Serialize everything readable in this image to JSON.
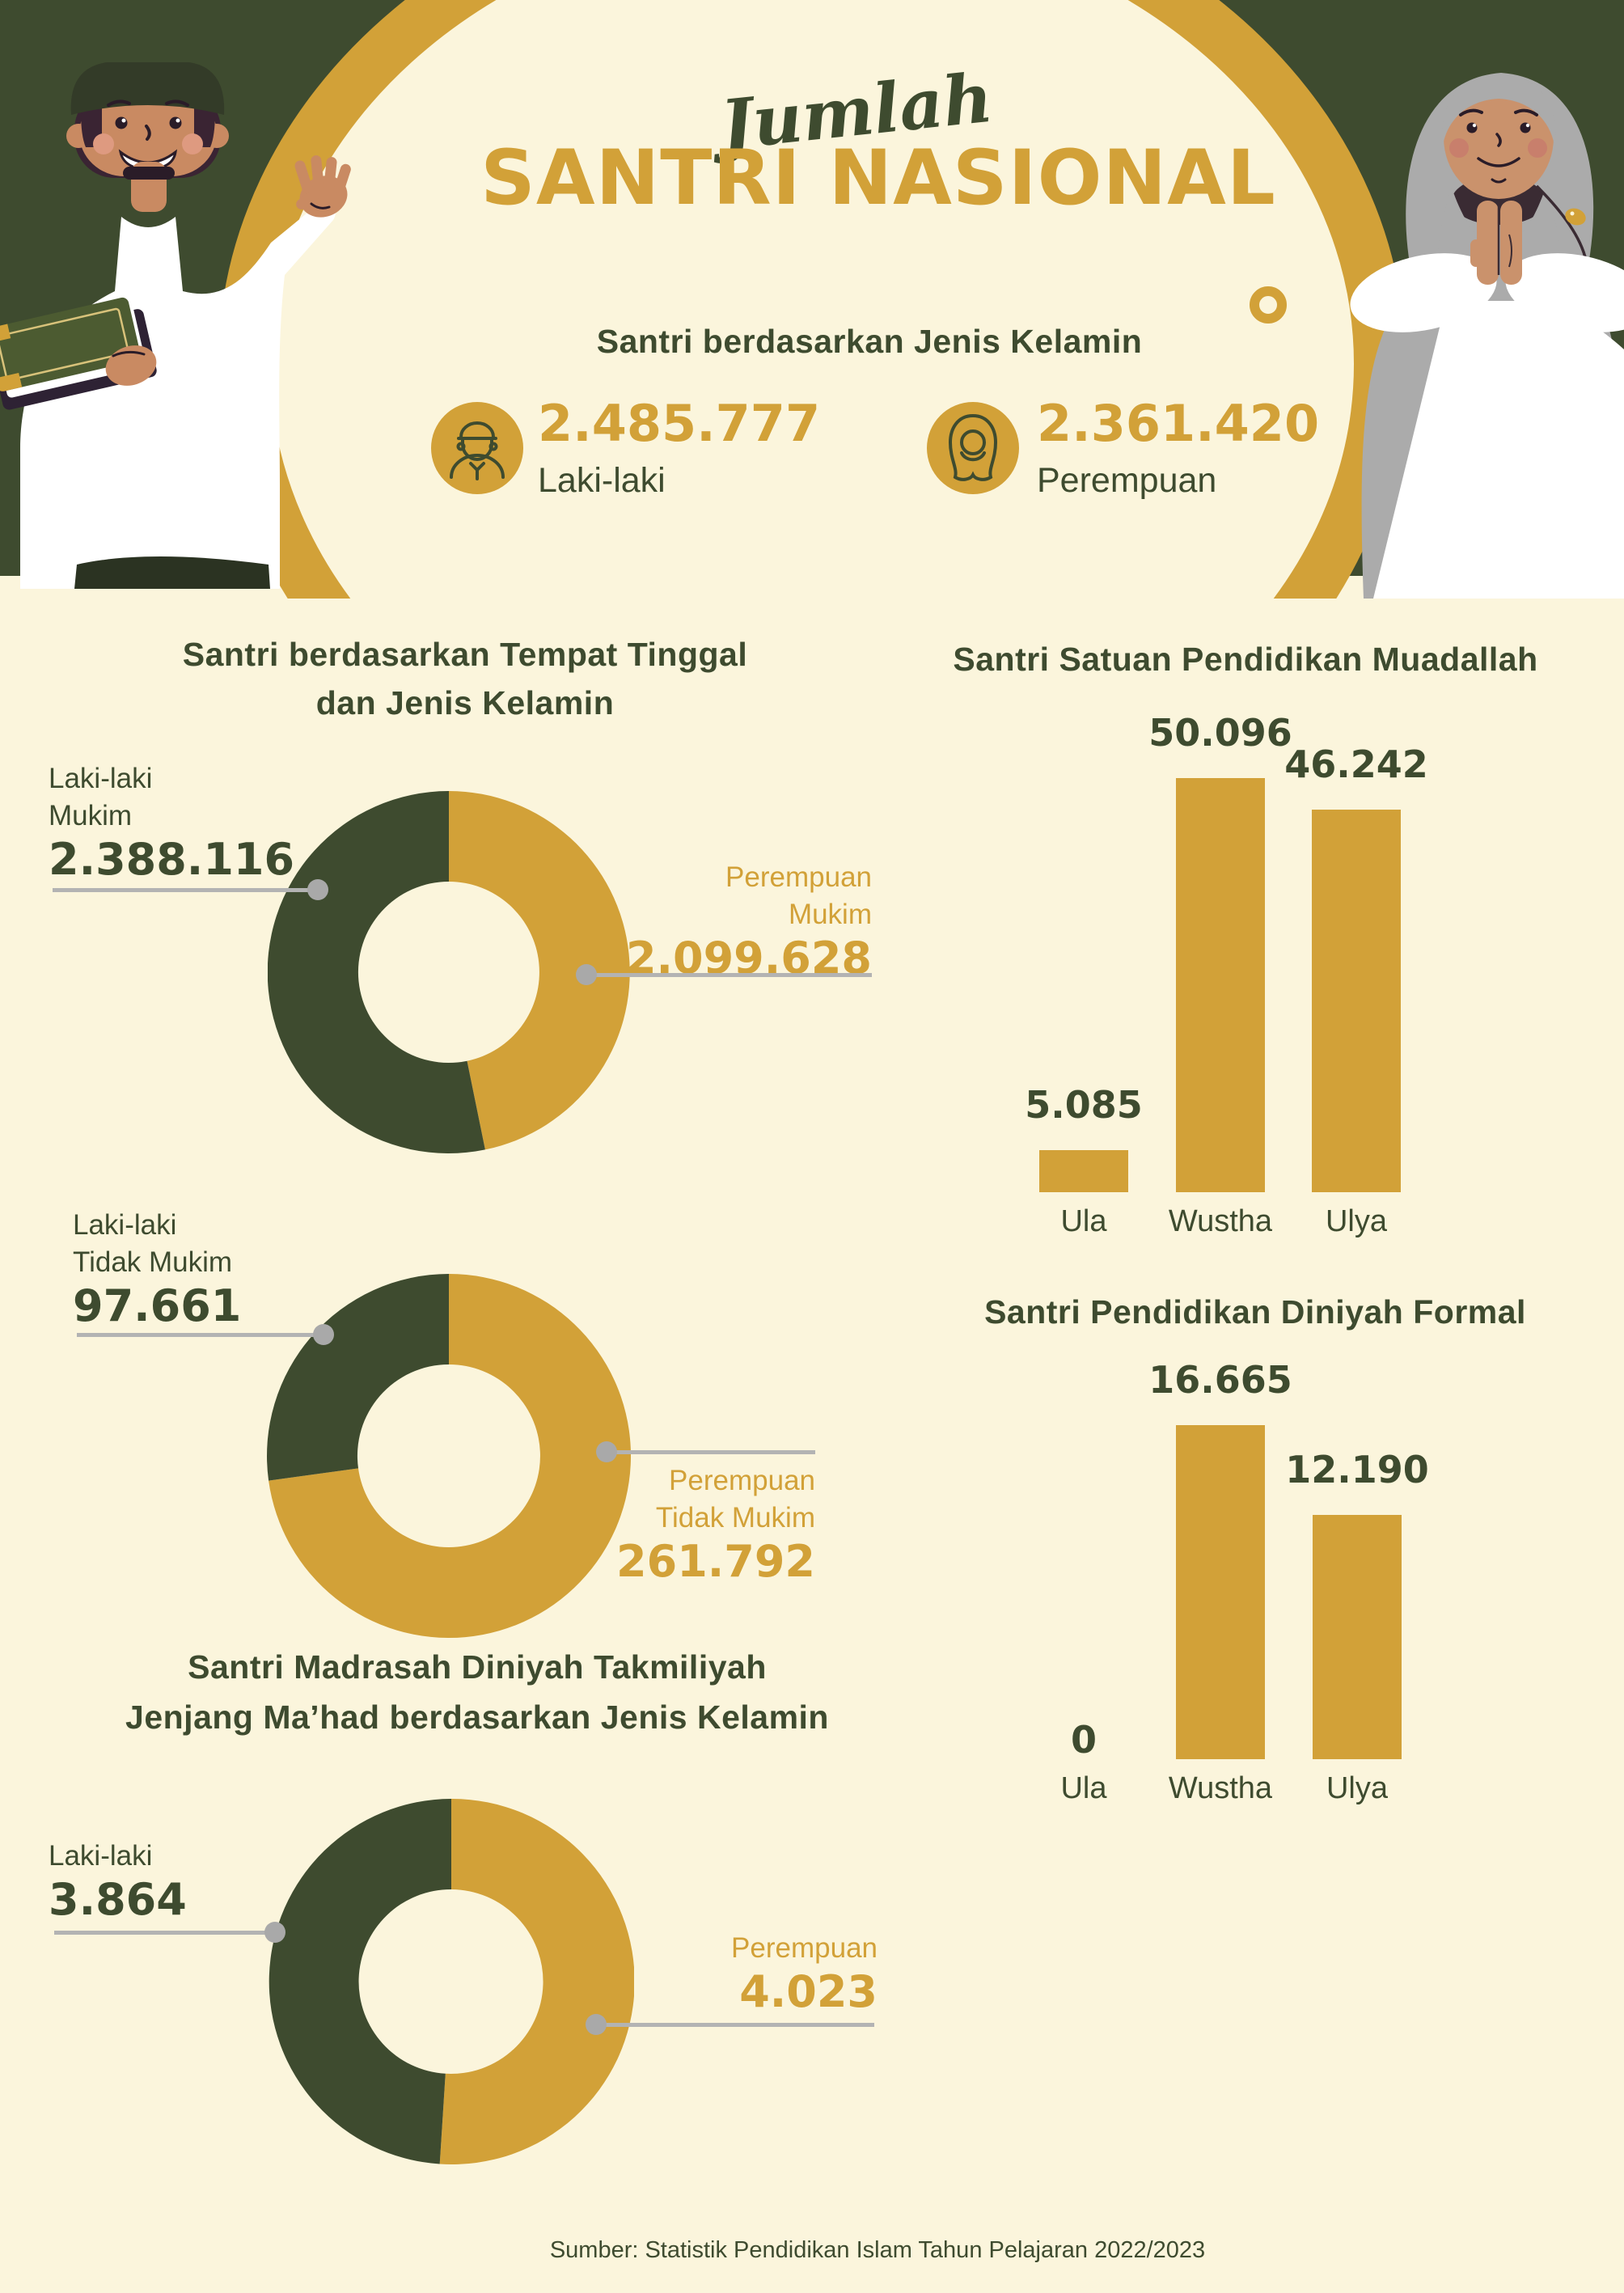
{
  "title": {
    "script": "Jumlah",
    "main": "SANTRI NASIONAL"
  },
  "colors": {
    "green": "#3E4B2F",
    "gold": "#D2A138",
    "cream": "#FBF5DC",
    "grey": "#A9A9A9"
  },
  "icons": {
    "male": "man-with-peci-icon",
    "female": "woman-with-hijab-icon"
  },
  "gender_summary": {
    "heading": "Santri berdasarkan Jenis Kelamin",
    "male": {
      "value": "2.485.777",
      "label": "Laki-laki"
    },
    "female": {
      "value": "2.361.420",
      "label": "Perempuan"
    }
  },
  "footer": {
    "source": "Sumber: Statistik Pendidikan Islam Tahun Pelajaran 2022/2023"
  },
  "chart_data": [
    {
      "id": "mukim-donut",
      "type": "pie",
      "subtype": "donut",
      "title": "Santri berdasarkan Tempat Tinggal dan Jenis Kelamin",
      "title_lines": [
        "Santri berdasarkan Tempat Tinggal",
        "dan Jenis Kelamin"
      ],
      "slices": [
        {
          "label": "Perempuan Mukim",
          "value": 2099628,
          "display": "2.099.628",
          "color": "gold"
        },
        {
          "label": "Laki-laki Mukim",
          "value": 2388116,
          "display": "2.388.116",
          "color": "green"
        }
      ],
      "callouts": {
        "left": {
          "lines": [
            "Laki-laki",
            "Mukim"
          ],
          "value": "2.388.116"
        },
        "right": {
          "lines": [
            "Perempuan",
            "Mukim"
          ],
          "value": "2.099.628"
        }
      }
    },
    {
      "id": "tidak-mukim-donut",
      "type": "pie",
      "subtype": "donut",
      "title": "",
      "slices": [
        {
          "label": "Perempuan Tidak Mukim",
          "value": 261792,
          "display": "261.792",
          "color": "gold"
        },
        {
          "label": "Laki-laki Tidak Mukim",
          "value": 97661,
          "display": "97.661",
          "color": "green"
        }
      ],
      "callouts": {
        "left": {
          "lines": [
            "Laki-laki",
            "Tidak Mukim"
          ],
          "value": "97.661"
        },
        "right": {
          "lines": [
            "Perempuan",
            "Tidak Mukim"
          ],
          "value": "261.792"
        }
      }
    },
    {
      "id": "muadallah-bars",
      "type": "bar",
      "title": "Santri Satuan Pendidikan Muadallah",
      "categories": [
        "Ula",
        "Wustha",
        "Ulya"
      ],
      "values": [
        5085,
        50096,
        46242
      ],
      "displays": [
        "5.085",
        "50.096",
        "46.242"
      ],
      "ylim": [
        0,
        50096
      ]
    },
    {
      "id": "diniyah-formal-bars",
      "type": "bar",
      "title": "Santri Pendidikan Diniyah Formal",
      "categories": [
        "Ula",
        "Wustha",
        "Ulya"
      ],
      "values": [
        0,
        16665,
        12190
      ],
      "displays": [
        "0",
        "16.665",
        "12.190"
      ],
      "ylim": [
        0,
        16665
      ]
    },
    {
      "id": "takmiliyah-donut",
      "type": "pie",
      "subtype": "donut",
      "title": "Santri Madrasah Diniyah Takmiliyah Jenjang Ma’had berdasarkan Jenis Kelamin",
      "title_lines": [
        "Santri Madrasah Diniyah Takmiliyah",
        "Jenjang Ma’had berdasarkan Jenis Kelamin"
      ],
      "slices": [
        {
          "label": "Perempuan",
          "value": 4023,
          "display": "4.023",
          "color": "gold"
        },
        {
          "label": "Laki-laki",
          "value": 3864,
          "display": "3.864",
          "color": "green"
        }
      ],
      "callouts": {
        "left": {
          "lines": [
            "Laki-laki"
          ],
          "value": "3.864"
        },
        "right": {
          "lines": [
            "Perempuan"
          ],
          "value": "4.023"
        }
      }
    }
  ]
}
